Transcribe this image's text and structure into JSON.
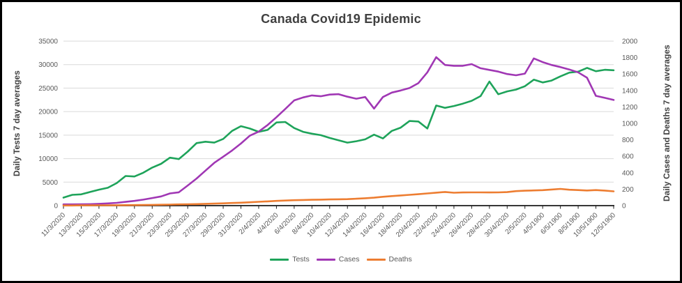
{
  "title": "Canada Covid19 Epidemic",
  "left_axis": {
    "title": "Daily Tests 7 day averages",
    "tick_labels": [
      "0",
      "5000",
      "10000",
      "15000",
      "20000",
      "25000",
      "30000",
      "35000"
    ]
  },
  "right_axis": {
    "title": "Daily Cases and Deaths 7 day averages",
    "tick_labels": [
      "0",
      "200",
      "400",
      "600",
      "800",
      "1000",
      "1200",
      "1400",
      "1600",
      "1800",
      "2000"
    ]
  },
  "colors": {
    "tests": "#1EA35A",
    "cases": "#A037B4",
    "deaths": "#ED7D31",
    "gridline": "#D9D9D9",
    "axis_line": "#1a1a1a",
    "tick_text": "#595959",
    "title_text": "#404040"
  },
  "chart_data": {
    "type": "line",
    "title": "Canada Covid19 Epidemic",
    "xlabel": "",
    "ylabel_left": "Daily Tests 7 day averages",
    "ylabel_right": "Daily Cases and Deaths 7 day averages",
    "left_ylim": [
      0,
      35000
    ],
    "right_ylim": [
      0,
      2000
    ],
    "grid": "horizontal",
    "legend_position": "bottom",
    "x_points_per_label": 2,
    "x_tick_labels": [
      "11/3/2020",
      "13/3/2020",
      "15/3/2020",
      "17/3/2020",
      "19/3/2020",
      "21/3/2020",
      "23/3/2020",
      "25/3/2020",
      "27/3/2020",
      "29/3/2020",
      "31/3/2020",
      "2/4/2020",
      "4/4/2020",
      "6/4/2020",
      "8/4/2020",
      "10/4/2020",
      "12/4/2020",
      "14/4/2020",
      "16/4/2020",
      "18/4/2020",
      "20/4/2020",
      "22/4/2020",
      "24/4/2020",
      "26/4/2020",
      "28/4/2020",
      "30/4/2020",
      "2/5/2020",
      "4/5/1900",
      "6/5/1900",
      "8/5/1900",
      "10/5/1900",
      "12/5/1900"
    ],
    "series": [
      {
        "name": "Tests",
        "axis": "left",
        "color": "#1EA35A",
        "values": [
          1700,
          2300,
          2400,
          2900,
          3400,
          3800,
          4800,
          6300,
          6200,
          7000,
          8100,
          8900,
          10200,
          9900,
          11500,
          13300,
          13600,
          13400,
          14200,
          15900,
          16900,
          16400,
          15700,
          16100,
          17700,
          17800,
          16500,
          15700,
          15300,
          15000,
          14400,
          13900,
          13400,
          13700,
          14100,
          15100,
          14300,
          15900,
          16600,
          18000,
          17900,
          16400,
          21300,
          20800,
          21200,
          21700,
          22300,
          23300,
          26400,
          23700,
          24300,
          24700,
          25400,
          26800,
          26200,
          26600,
          27500,
          28300,
          28500,
          29300,
          28600,
          28900,
          28800
        ]
      },
      {
        "name": "Cases",
        "axis": "right",
        "color": "#A037B4",
        "values": [
          15,
          15,
          17,
          18,
          22,
          27,
          34,
          46,
          58,
          73,
          92,
          112,
          148,
          162,
          245,
          330,
          425,
          520,
          595,
          670,
          755,
          850,
          900,
          980,
          1075,
          1175,
          1280,
          1315,
          1340,
          1330,
          1350,
          1355,
          1325,
          1300,
          1320,
          1180,
          1320,
          1375,
          1400,
          1430,
          1490,
          1620,
          1805,
          1710,
          1700,
          1700,
          1720,
          1670,
          1650,
          1630,
          1600,
          1585,
          1605,
          1790,
          1745,
          1710,
          1685,
          1655,
          1620,
          1555,
          1335,
          1310,
          1285
        ]
      },
      {
        "name": "Deaths",
        "axis": "right",
        "color": "#ED7D31",
        "values": [
          2,
          2,
          3,
          3,
          4,
          4,
          5,
          6,
          7,
          8,
          9,
          11,
          13,
          15,
          17,
          19,
          22,
          25,
          28,
          32,
          36,
          41,
          47,
          52,
          58,
          62,
          66,
          69,
          71,
          73,
          75,
          77,
          79,
          84,
          90,
          97,
          108,
          116,
          124,
          131,
          139,
          148,
          158,
          166,
          157,
          160,
          161,
          161,
          160,
          161,
          164,
          176,
          181,
          185,
          188,
          196,
          203,
          193,
          189,
          184,
          189,
          183,
          174
        ]
      }
    ]
  }
}
